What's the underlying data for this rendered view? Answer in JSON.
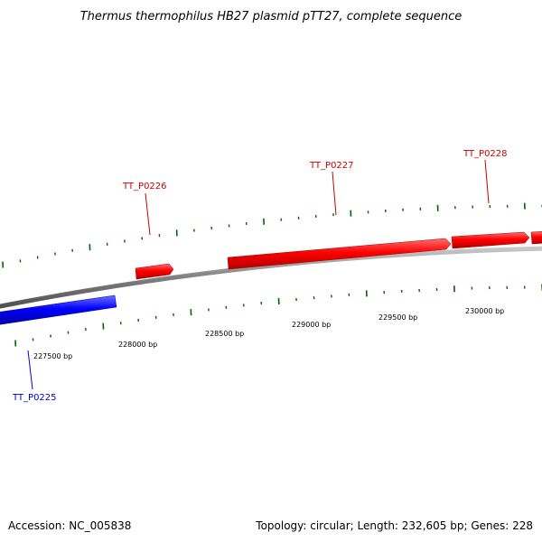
{
  "title": "Thermus thermophilus HB27 plasmid pTT27, complete sequence",
  "footer": {
    "accession": "Accession: NC_005838",
    "summary": "Topology: circular; Length: 232,605 bp; Genes: 228"
  },
  "colors": {
    "forward_gene": "#ff0000",
    "reverse_gene": "#0000ff",
    "backbone": "#808080",
    "ticks": "#006400",
    "forward_label": "#cc0000",
    "reverse_label": "#0000cc"
  },
  "scale": {
    "tick_labels": [
      "227500 bp",
      "228000 bp",
      "228500 bp",
      "229000 bp",
      "229500 bp",
      "230000 bp"
    ]
  },
  "genes": [
    {
      "label": "TT_P0225",
      "strand": "reverse"
    },
    {
      "label": "TT_P0226",
      "strand": "forward"
    },
    {
      "label": "TT_P0227",
      "strand": "forward"
    },
    {
      "label": "TT_P0228",
      "strand": "forward"
    }
  ]
}
